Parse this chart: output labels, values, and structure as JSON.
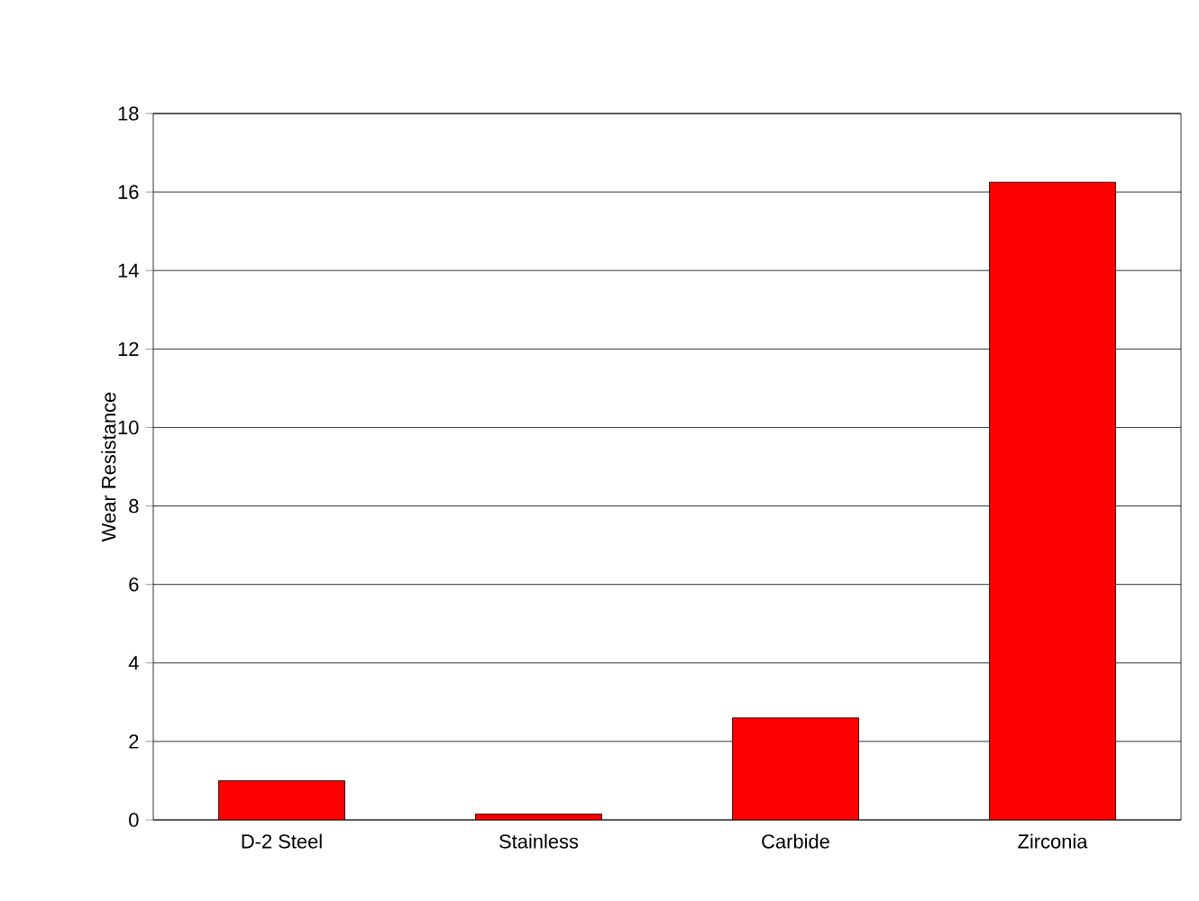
{
  "chart_data": {
    "type": "bar",
    "ylabel": "Wear Resistance",
    "categories": [
      "D-2 Steel",
      "Stainless",
      "Carbide",
      "Zirconia"
    ],
    "values": [
      1,
      0.15,
      2.6,
      16.25
    ],
    "color": "#ff0000",
    "ylim": [
      0,
      18
    ],
    "yticks": [
      0,
      2,
      4,
      6,
      8,
      10,
      12,
      14,
      16,
      18
    ],
    "grid": "y"
  }
}
